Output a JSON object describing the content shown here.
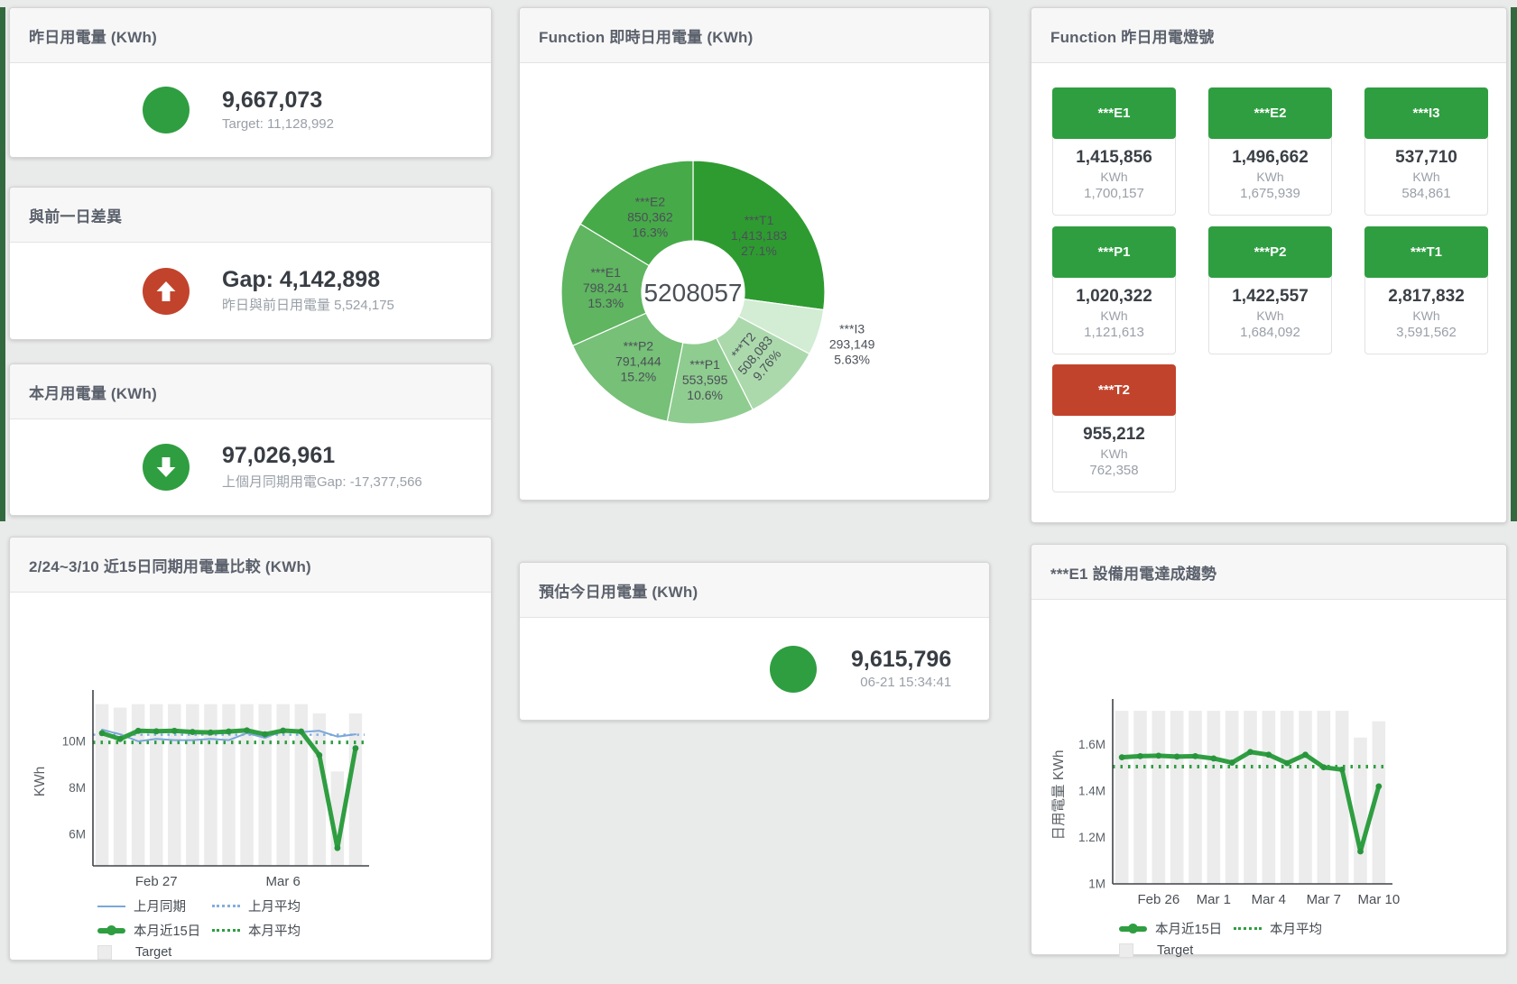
{
  "panels": {
    "yesterday_usage": {
      "title": "昨日用電量 (KWh)",
      "value": "9,667,073",
      "subtitle": "Target: 11,128,992"
    },
    "gap_prev_day": {
      "title": "與前一日差異",
      "value": "Gap: 4,142,898",
      "subtitle": "昨日與前日用電量 5,524,175"
    },
    "month_usage": {
      "title": "本月用電量 (KWh)",
      "value": "97,026,961",
      "subtitle": "上個月同期用電Gap: -17,377,566"
    },
    "realtime_donut": {
      "title": "Function 即時日用電量 (KWh)"
    },
    "lights": {
      "title": "Function 昨日用電燈號"
    },
    "estimate_today": {
      "title": "預估今日用電量 (KWh)",
      "value": "9,615,796",
      "subtitle": "06-21 15:34:41"
    },
    "compare_15d": {
      "title": "2/24~3/10 近15日同期用電量比較 (KWh)"
    },
    "e1_trend": {
      "title": "***E1 設備用電達成趨勢"
    }
  },
  "colors": {
    "green": "#2f9e41",
    "red": "#c2432c",
    "blue": "#7aa7d9",
    "bar_gray": "#ececec"
  },
  "lights": [
    {
      "name": "***E1",
      "value": "1,415,856",
      "unit": "KWh",
      "target": "1,700,157",
      "status": "green"
    },
    {
      "name": "***E2",
      "value": "1,496,662",
      "unit": "KWh",
      "target": "1,675,939",
      "status": "green"
    },
    {
      "name": "***I3",
      "value": "537,710",
      "unit": "KWh",
      "target": "584,861",
      "status": "green"
    },
    {
      "name": "***P1",
      "value": "1,020,322",
      "unit": "KWh",
      "target": "1,121,613",
      "status": "green"
    },
    {
      "name": "***P2",
      "value": "1,422,557",
      "unit": "KWh",
      "target": "1,684,092",
      "status": "green"
    },
    {
      "name": "***T1",
      "value": "2,817,832",
      "unit": "KWh",
      "target": "3,591,562",
      "status": "green"
    },
    {
      "name": "***T2",
      "value": "955,212",
      "unit": "KWh",
      "target": "762,358",
      "status": "red"
    }
  ],
  "chart_data": [
    {
      "type": "pie",
      "title": "Function 即時日用電量 (KWh)",
      "center_label": "5208057",
      "legend_position": "none",
      "segments": [
        {
          "name": "***T1",
          "value": 1413183,
          "pct": "27.1%",
          "color": "#2e9b31"
        },
        {
          "name": "***I3",
          "value": 293149,
          "pct": "5.63%",
          "color": "#d3ecd4",
          "label_outside": true
        },
        {
          "name": "***T2",
          "value": 508083,
          "pct": "9.76%",
          "color": "#abd9ac",
          "label_rotate": -50
        },
        {
          "name": "***P1",
          "value": 553595,
          "pct": "10.6%",
          "color": "#8fcc90"
        },
        {
          "name": "***P2",
          "value": 791444,
          "pct": "15.2%",
          "color": "#76c077"
        },
        {
          "name": "***E1",
          "value": 798241,
          "pct": "15.3%",
          "color": "#5fb560"
        },
        {
          "name": "***E2",
          "value": 850362,
          "pct": "16.3%",
          "color": "#47aa49"
        }
      ]
    },
    {
      "type": "line+bar",
      "title": "2/24~3/10 近15日同期用電量比較 (KWh)",
      "ylabel": "KWh",
      "ylim": [
        4630000,
        11900000
      ],
      "yticks": [
        {
          "value": 6000000,
          "label": "6M"
        },
        {
          "value": 8000000,
          "label": "8M"
        },
        {
          "value": 10000000,
          "label": "10M"
        }
      ],
      "x_count": 15,
      "x_range": "Feb 24 - Mar 10",
      "xticks": [
        {
          "index": 3,
          "label": "Feb 27"
        },
        {
          "index": 10,
          "label": "Mar 6"
        }
      ],
      "grid": false,
      "series": [
        {
          "name": "Target",
          "type": "bar",
          "color": "#ececec",
          "values": [
            11600000,
            11450000,
            11600000,
            11600000,
            11600000,
            11600000,
            11600000,
            11600000,
            11600000,
            11600000,
            11600000,
            11600000,
            11200000,
            8700000,
            11200000
          ]
        },
        {
          "name": "上月平均",
          "type": "avg",
          "color": "#85aede",
          "value": 10280000,
          "width": 2.5,
          "dash": "2.5 5"
        },
        {
          "name": "本月平均",
          "type": "avg",
          "color": "#2f9e41",
          "value": 9950000,
          "width": 4,
          "dash": "2.5 6"
        },
        {
          "name": "上月同期",
          "type": "line",
          "color": "#7aa7d9",
          "width": 2,
          "values": [
            10500000,
            10300000,
            10000000,
            10100000,
            10050000,
            10050000,
            10100000,
            10050000,
            10350000,
            10150000,
            10450000,
            10400000,
            10450000,
            10200000,
            10300000
          ]
        },
        {
          "name": "本月近15日",
          "type": "line",
          "color": "#2f9e41",
          "width": 5,
          "markers": true,
          "marker_color": "#28953c",
          "values": [
            10350000,
            10100000,
            10450000,
            10430000,
            10450000,
            10400000,
            10380000,
            10420000,
            10470000,
            10300000,
            10460000,
            10420000,
            9400000,
            5400000,
            9700000
          ]
        }
      ],
      "legend": [
        {
          "label": "上月同期",
          "swatch": "line",
          "color": "#7aa7d9"
        },
        {
          "label": "上月平均",
          "swatch": "dash",
          "color": "#85aede"
        },
        {
          "label": "本月近15日",
          "swatch": "thick",
          "color": "#2f9e41"
        },
        {
          "label": "本月平均",
          "swatch": "dash",
          "color": "#2f9e41"
        },
        {
          "label": "Target",
          "swatch": "bar",
          "color": "#ececec"
        }
      ]
    },
    {
      "type": "line+bar",
      "title": "***E1 設備用電達成趨勢",
      "ylabel": "日用電量 KWh",
      "ylim": [
        1000000,
        1765000
      ],
      "yticks": [
        {
          "value": 1000000,
          "label": "1M"
        },
        {
          "value": 1200000,
          "label": "1.2M"
        },
        {
          "value": 1400000,
          "label": "1.4M"
        },
        {
          "value": 1600000,
          "label": "1.6M"
        }
      ],
      "x_count": 15,
      "x_range": "Feb 24 - Mar 10",
      "xticks": [
        {
          "index": 2,
          "label": "Feb 26"
        },
        {
          "index": 5,
          "label": "Mar 1"
        },
        {
          "index": 8,
          "label": "Mar 4"
        },
        {
          "index": 11,
          "label": "Mar 7"
        },
        {
          "index": 14,
          "label": "Mar 10"
        }
      ],
      "grid": false,
      "series": [
        {
          "name": "Target",
          "type": "bar",
          "color": "#ececec",
          "values": [
            1745000,
            1745000,
            1745000,
            1745000,
            1745000,
            1745000,
            1745000,
            1745000,
            1745000,
            1745000,
            1745000,
            1745000,
            1745000,
            1630000,
            1700000
          ]
        },
        {
          "name": "本月平均",
          "type": "avg",
          "color": "#2f9e41",
          "value": 1505000,
          "width": 4,
          "dash": "2.5 6"
        },
        {
          "name": "本月近15日",
          "type": "line",
          "color": "#2f9e41",
          "width": 5,
          "markers": true,
          "marker_color": "#28953c",
          "values": [
            1545000,
            1550000,
            1552000,
            1548000,
            1550000,
            1540000,
            1522000,
            1568000,
            1556000,
            1520000,
            1556000,
            1502000,
            1492000,
            1140000,
            1420000
          ]
        }
      ],
      "legend": [
        {
          "label": "本月近15日",
          "swatch": "thick",
          "color": "#2f9e41"
        },
        {
          "label": "本月平均",
          "swatch": "dash",
          "color": "#2f9e41"
        },
        {
          "label": "Target",
          "swatch": "bar",
          "color": "#ececec"
        }
      ]
    }
  ]
}
